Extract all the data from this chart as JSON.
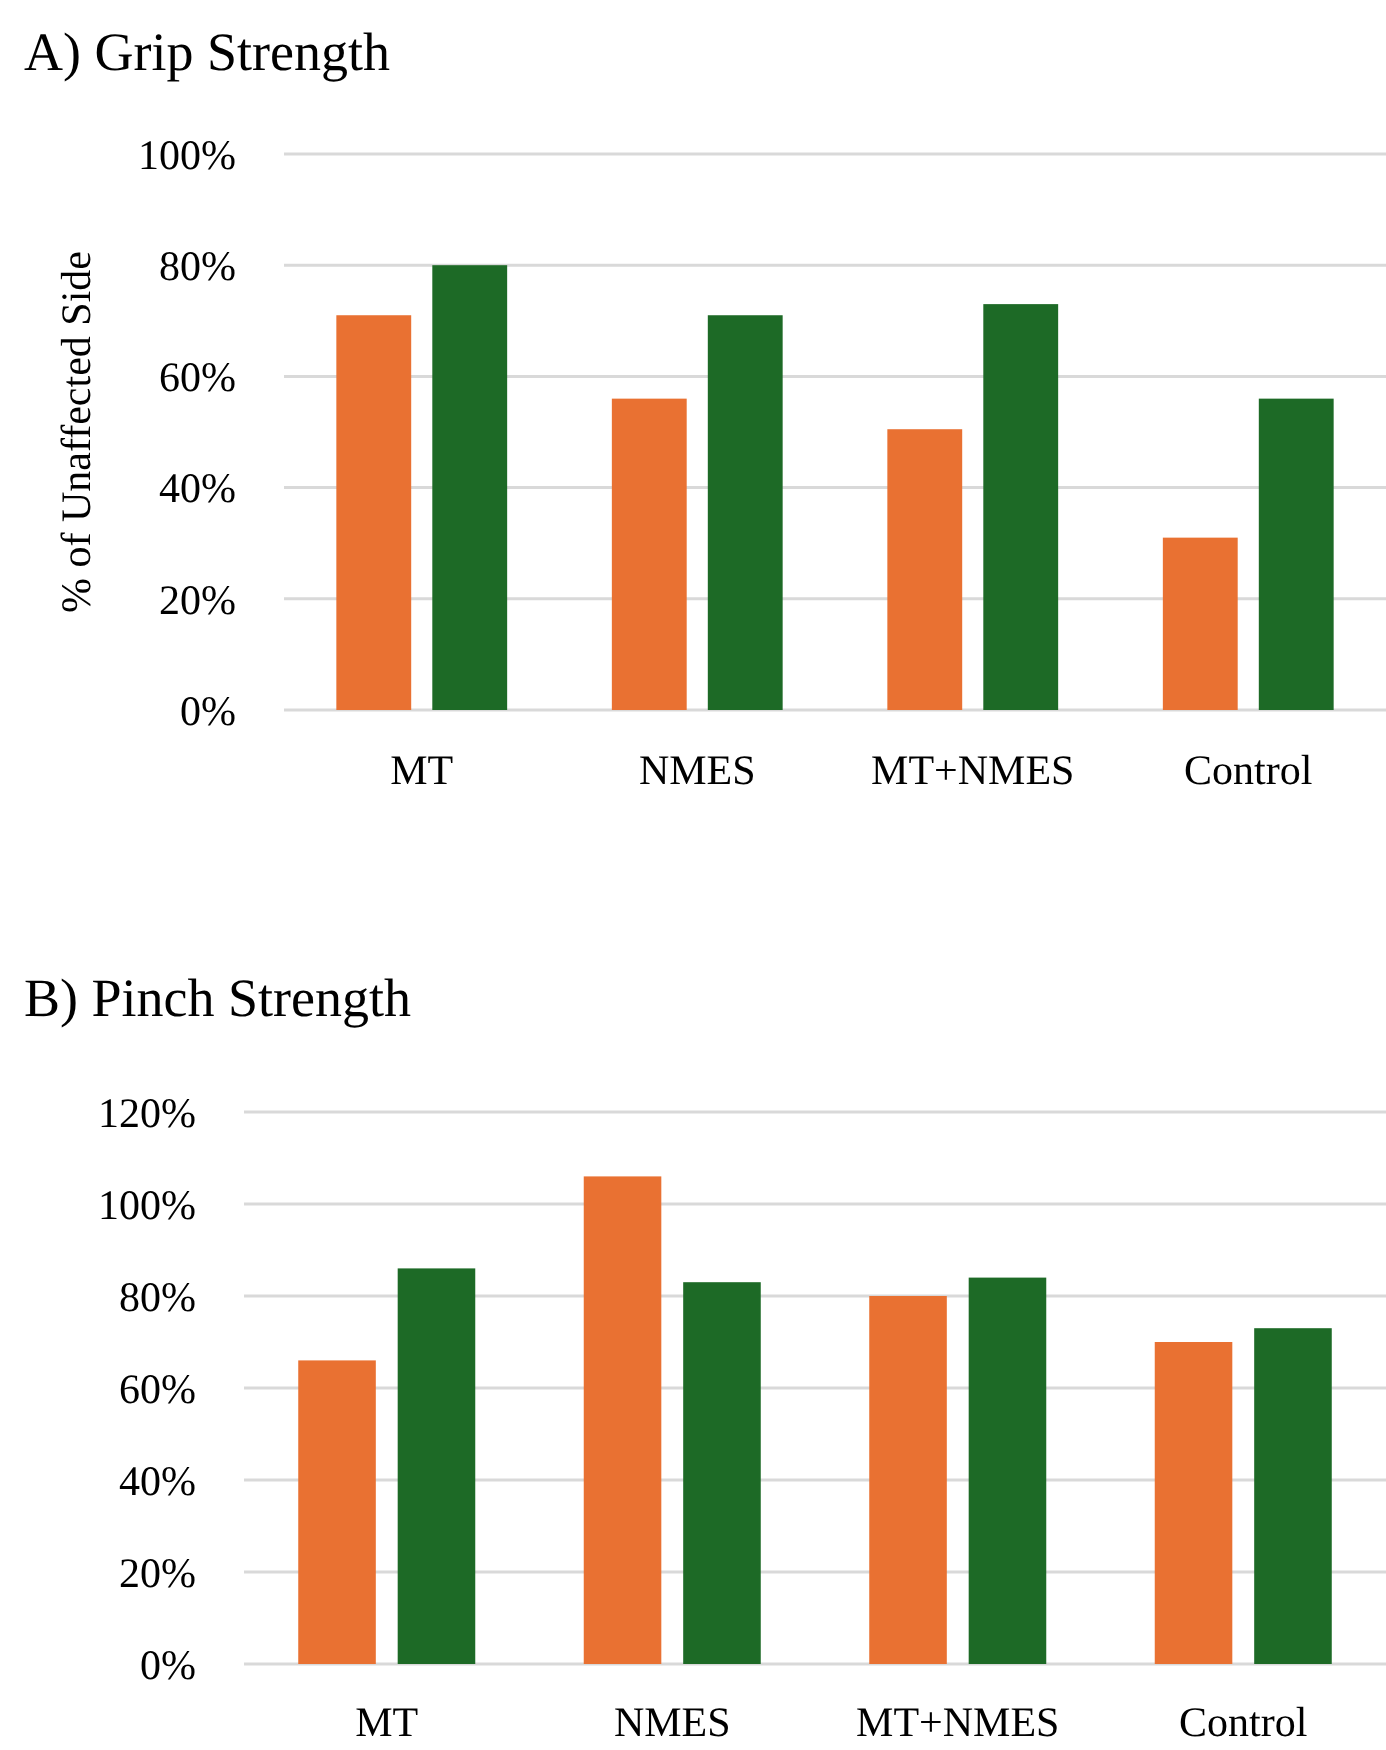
{
  "chart_data": [
    {
      "type": "bar",
      "title": "A) Grip Strength",
      "ylabel": "% of Unaffected Side",
      "categories": [
        "MT",
        "NMES",
        "MT+NMES",
        "Control"
      ],
      "series": [
        {
          "color": "#e97132",
          "values": [
            71,
            56,
            50.5,
            31
          ]
        },
        {
          "color": "#1d6a26",
          "values": [
            80,
            71,
            73,
            56
          ]
        }
      ],
      "ylim": [
        0,
        100
      ],
      "yticks": [
        {
          "value": 0,
          "label": "0%"
        },
        {
          "value": 20,
          "label": "20%"
        },
        {
          "value": 40,
          "label": "40%"
        },
        {
          "value": 60,
          "label": "60%"
        },
        {
          "value": 80,
          "label": "80%"
        },
        {
          "value": 100,
          "label": "100%"
        }
      ],
      "grid": "y"
    },
    {
      "type": "bar",
      "title": "B) Pinch Strength",
      "categories": [
        "MT",
        "NMES",
        "MT+NMES",
        "Control"
      ],
      "series": [
        {
          "color": "#e97132",
          "values": [
            66,
            106,
            80,
            70
          ]
        },
        {
          "color": "#1d6a26",
          "values": [
            86,
            83,
            84,
            73
          ]
        }
      ],
      "ylim": [
        0,
        120
      ],
      "yticks": [
        {
          "value": 0,
          "label": "0%"
        },
        {
          "value": 20,
          "label": "20%"
        },
        {
          "value": 40,
          "label": "40%"
        },
        {
          "value": 60,
          "label": "60%"
        },
        {
          "value": 80,
          "label": "80%"
        },
        {
          "value": 100,
          "label": "100%"
        },
        {
          "value": 120,
          "label": "120%"
        }
      ],
      "grid": "y"
    }
  ]
}
